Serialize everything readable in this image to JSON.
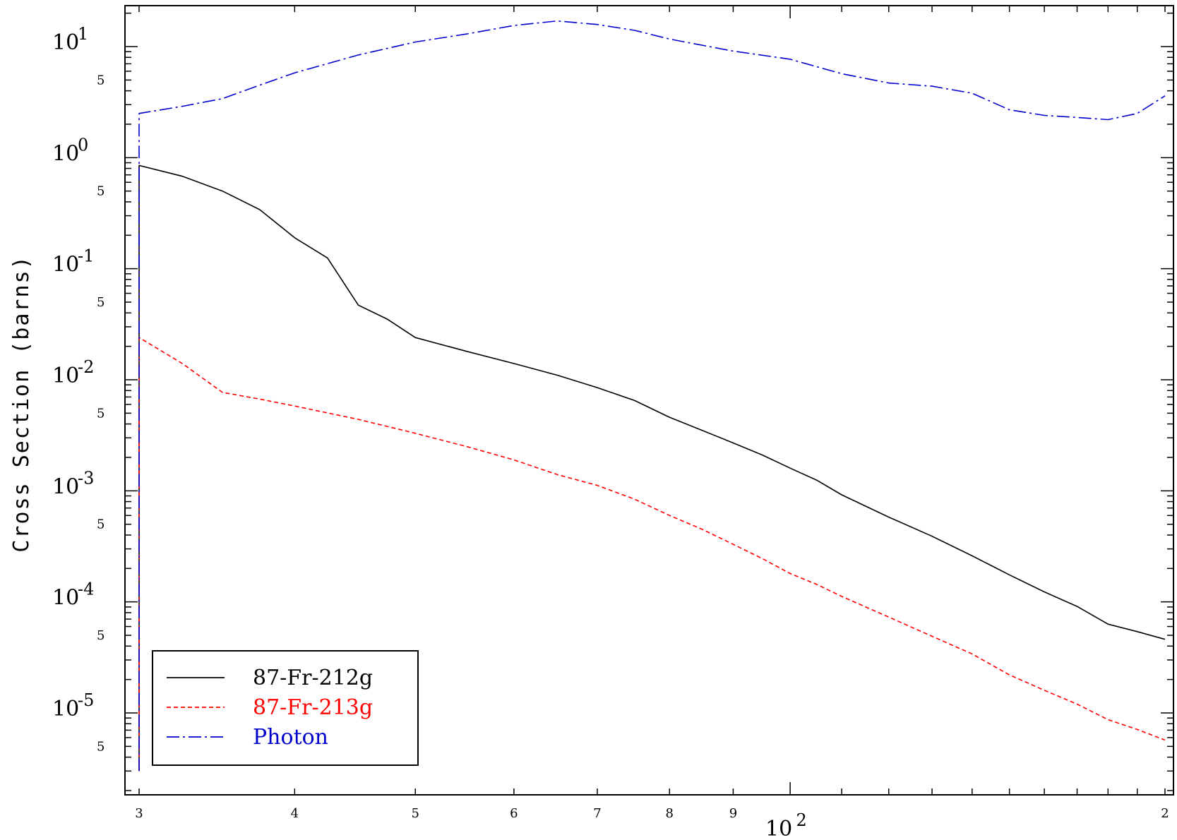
{
  "chart_data": {
    "type": "line",
    "title": "",
    "xlabel": "",
    "ylabel": "Cross Section (barns)",
    "xscale": "log",
    "yscale": "log",
    "xlim": [
      30,
      200
    ],
    "ylim": [
      3e-06,
      30
    ],
    "grid": false,
    "legend_position": "bottom-left",
    "x_major_ticks": [
      {
        "value": 100,
        "base": "10",
        "exp": "2"
      }
    ],
    "x_minor_ticks": [
      {
        "value": 30,
        "label": "3"
      },
      {
        "value": 40,
        "label": "4"
      },
      {
        "value": 50,
        "label": "5"
      },
      {
        "value": 60,
        "label": "6"
      },
      {
        "value": 70,
        "label": "7"
      },
      {
        "value": 80,
        "label": "8"
      },
      {
        "value": 90,
        "label": "9"
      },
      {
        "value": 200,
        "label": "2"
      }
    ],
    "y_major_ticks": [
      {
        "value": 10,
        "base": "10",
        "exp": "1"
      },
      {
        "value": 1,
        "base": "10",
        "exp": "0"
      },
      {
        "value": 0.1,
        "base": "10",
        "exp": "-1"
      },
      {
        "value": 0.01,
        "base": "10",
        "exp": "-2"
      },
      {
        "value": 0.001,
        "base": "10",
        "exp": "-3"
      },
      {
        "value": 0.0001,
        "base": "10",
        "exp": "-4"
      },
      {
        "value": 1e-05,
        "base": "10",
        "exp": "-5"
      }
    ],
    "y_minor_labels": [
      {
        "value": 5,
        "label": "5"
      },
      {
        "value": 0.5,
        "label": "5"
      },
      {
        "value": 0.05,
        "label": "5"
      },
      {
        "value": 0.005,
        "label": "5"
      },
      {
        "value": 0.0005,
        "label": "5"
      },
      {
        "value": 5e-05,
        "label": "5"
      },
      {
        "value": 5e-06,
        "label": "5"
      }
    ],
    "series": [
      {
        "name": "87-Fr-212g",
        "color": "#000000",
        "dash": "solid",
        "x": [
          30,
          30,
          32.5,
          35,
          37.5,
          40,
          42.5,
          45,
          47.5,
          50,
          55,
          60,
          65,
          70,
          75,
          80,
          85,
          90,
          95,
          100,
          105,
          110,
          120,
          130,
          140,
          150,
          160,
          170,
          180,
          190,
          200
        ],
        "y": [
          3e-06,
          0.85,
          0.68,
          0.5,
          0.34,
          0.19,
          0.125,
          0.047,
          0.035,
          0.024,
          0.018,
          0.014,
          0.011,
          0.0085,
          0.0065,
          0.0046,
          0.0035,
          0.0027,
          0.0021,
          0.0016,
          0.00125,
          0.00092,
          0.00058,
          0.00039,
          0.00026,
          0.000175,
          0.000123,
          9.1e-05,
          6.3e-05,
          5.4e-05,
          4.6e-05
        ]
      },
      {
        "name": "87-Fr-213g",
        "color": "#ff0000",
        "dash": "dashed",
        "x": [
          30,
          30,
          32.5,
          35,
          37.5,
          40,
          45,
          50,
          55,
          60,
          65,
          70,
          75,
          80,
          85,
          90,
          95,
          100,
          105,
          110,
          120,
          130,
          140,
          150,
          160,
          170,
          180,
          190,
          200
        ],
        "y": [
          3e-06,
          0.024,
          0.014,
          0.0077,
          0.0067,
          0.0058,
          0.0044,
          0.0033,
          0.0025,
          0.0019,
          0.0014,
          0.00112,
          0.00084,
          0.0006,
          0.00045,
          0.00033,
          0.000245,
          0.00018,
          0.000144,
          0.000112,
          7.3e-05,
          4.9e-05,
          3.4e-05,
          2.2e-05,
          1.6e-05,
          1.2e-05,
          8.7e-06,
          7.1e-06,
          5.7e-06
        ]
      },
      {
        "name": "Photon",
        "color": "#0000ff",
        "dash": "dashdot",
        "x": [
          30,
          30,
          30,
          32.5,
          35,
          37.5,
          40,
          45,
          50,
          55,
          60,
          65,
          70,
          75,
          80,
          90,
          100,
          110,
          120,
          130,
          140,
          150,
          160,
          170,
          180,
          190,
          200
        ],
        "y": [
          3e-06,
          2.2,
          2.5,
          2.9,
          3.4,
          4.5,
          5.8,
          8.4,
          11,
          13,
          15.5,
          17,
          15.8,
          14,
          11.7,
          9.1,
          7.7,
          5.7,
          4.7,
          4.4,
          3.8,
          2.7,
          2.4,
          2.3,
          2.2,
          2.5,
          3.6
        ]
      }
    ]
  }
}
